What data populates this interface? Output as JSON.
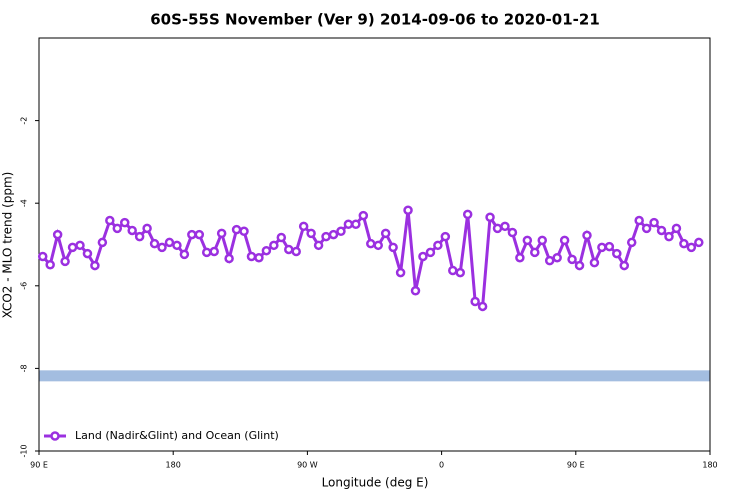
{
  "chart_data": {
    "type": "line",
    "title": "60S-55S November (Ver 9)   2014-09-06 to 2020-01-21",
    "x_label": "Longitude (deg E)",
    "y_label": "XCO2 - MLO trend (ppm)",
    "xlim": [
      90,
      540
    ],
    "xticks": [
      {
        "value": 90,
        "label": "90 E"
      },
      {
        "value": 180,
        "label": "180"
      },
      {
        "value": 270,
        "label": "90 W"
      },
      {
        "value": 360,
        "label": "0"
      },
      {
        "value": 450,
        "label": "90 E"
      },
      {
        "value": 540,
        "label": "180"
      }
    ],
    "ylim": [
      -10,
      0
    ],
    "yticks": [
      -10,
      -8,
      -6,
      -4,
      -2
    ],
    "band": {
      "value": -8.18,
      "color": "#a3bde0"
    },
    "legend": "bottom-left",
    "x": [
      92.5,
      97.5,
      102.5,
      107.5,
      112.5,
      117.5,
      122.5,
      127.5,
      132.5,
      137.5,
      142.5,
      147.5,
      152.5,
      157.5,
      162.5,
      167.5,
      172.5,
      177.5,
      182.5,
      187.5,
      192.5,
      197.5,
      202.5,
      207.5,
      212.5,
      217.5,
      222.5,
      227.5,
      232.5,
      237.5,
      242.5,
      247.5,
      252.5,
      257.5,
      262.5,
      267.5,
      272.5,
      277.5,
      282.5,
      287.5,
      292.5,
      297.5,
      302.5,
      307.5,
      312.5,
      317.5,
      322.5,
      327.5,
      332.5,
      337.5,
      342.5,
      347.5,
      352.5,
      357.5,
      362.5,
      367.5,
      372.5,
      377.5,
      382.5,
      387.5,
      392.5,
      397.5,
      402.5,
      407.5,
      412.5,
      417.5,
      422.5,
      427.5,
      432.5,
      437.5,
      442.5,
      447.5,
      452.5,
      457.5,
      462.5,
      467.5,
      472.5,
      477.5,
      482.5,
      487.5,
      492.5,
      497.5,
      502.5,
      507.5,
      512.5,
      517.5,
      522.5,
      527.5,
      532.5
    ],
    "series": [
      {
        "name": "Land (Nadir&Glint) and Ocean (Glint)",
        "color": "#9b30e0",
        "values": [
          -5.29,
          -5.49,
          -4.76,
          -5.41,
          -5.07,
          -5.02,
          -5.22,
          -5.51,
          -4.95,
          -4.42,
          -4.61,
          -4.47,
          -4.66,
          -4.81,
          -4.61,
          -4.98,
          -5.07,
          -4.95,
          -5.02,
          -5.24,
          -4.76,
          -4.76,
          -5.19,
          -5.17,
          -4.73,
          -5.34,
          -4.64,
          -4.68,
          -5.29,
          -5.32,
          -5.15,
          -5.02,
          -4.83,
          -5.12,
          -5.17,
          -4.56,
          -4.73,
          -5.02,
          -4.81,
          -4.76,
          -4.68,
          -4.51,
          -4.51,
          -4.3,
          -4.98,
          -5.02,
          -4.73,
          -5.07,
          -5.68,
          -4.17,
          -6.12,
          -5.29,
          -5.19,
          -5.02,
          -4.81,
          -5.63,
          -5.68,
          -4.27,
          -6.38,
          -6.5,
          -4.34,
          -4.61,
          -4.56,
          -4.71,
          -5.32,
          -4.9,
          -5.19,
          -4.9,
          -5.39,
          -5.32,
          -4.9,
          -5.36,
          -5.51,
          -4.78,
          -5.44,
          -5.07,
          -5.05,
          -5.22,
          -5.51,
          -4.95,
          -4.42,
          -4.61,
          -4.47,
          -4.66,
          -4.81,
          -4.61,
          -4.98,
          -5.07,
          -4.95
        ]
      }
    ]
  }
}
